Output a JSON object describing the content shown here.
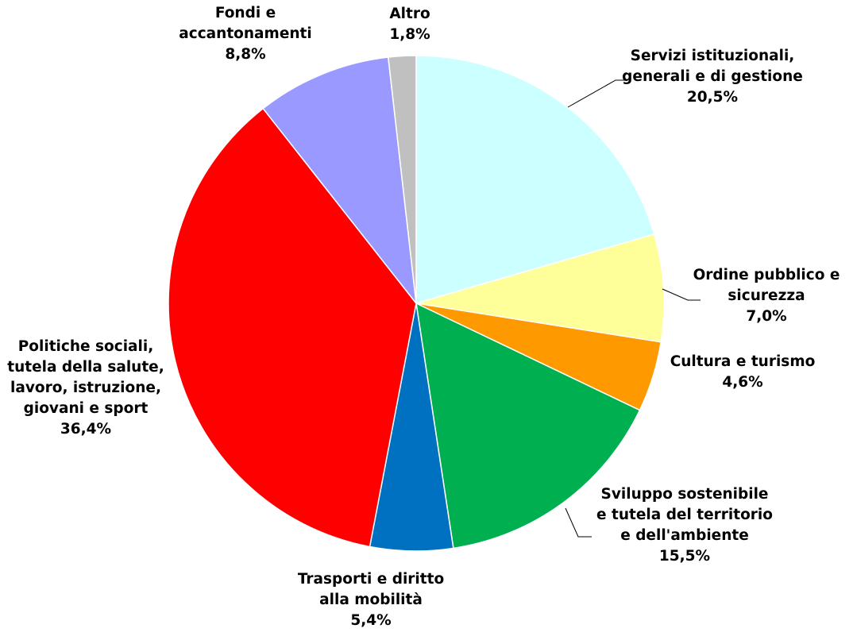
{
  "chart_data": {
    "type": "pie",
    "title": "",
    "slices": [
      {
        "label": [
          "Servizi istituzionali,",
          "generali e di gestione"
        ],
        "value_label": "20,5%",
        "value": 20.5,
        "color": "#ccffff"
      },
      {
        "label": [
          "Ordine pubblico e",
          "sicurezza"
        ],
        "value_label": "7,0%",
        "value": 7.0,
        "color": "#ffff99"
      },
      {
        "label": [
          "Cultura e turismo"
        ],
        "value_label": "4,6%",
        "value": 4.6,
        "color": "#ff9900"
      },
      {
        "label": [
          "Sviluppo sostenibile",
          "e tutela del territorio",
          "e dell'ambiente"
        ],
        "value_label": "15,5%",
        "value": 15.5,
        "color": "#00b050"
      },
      {
        "label": [
          "Trasporti e diritto",
          "alla mobilità"
        ],
        "value_label": "5,4%",
        "value": 5.4,
        "color": "#0070c0"
      },
      {
        "label": [
          "Politiche sociali,",
          "tutela della salute,",
          "lavoro, istruzione,",
          "giovani e sport"
        ],
        "value_label": "36,4%",
        "value": 36.4,
        "color": "#ff0000"
      },
      {
        "label": [
          "Fondi e",
          "accantonamenti"
        ],
        "value_label": "8,8%",
        "value": 8.8,
        "color": "#9999ff"
      },
      {
        "label": [
          "Altro"
        ],
        "value_label": "1,8%",
        "value": 1.8,
        "color": "#c0c0c0"
      }
    ],
    "start_angle": "12 o'clock",
    "direction": "clockwise",
    "legend": "none"
  }
}
